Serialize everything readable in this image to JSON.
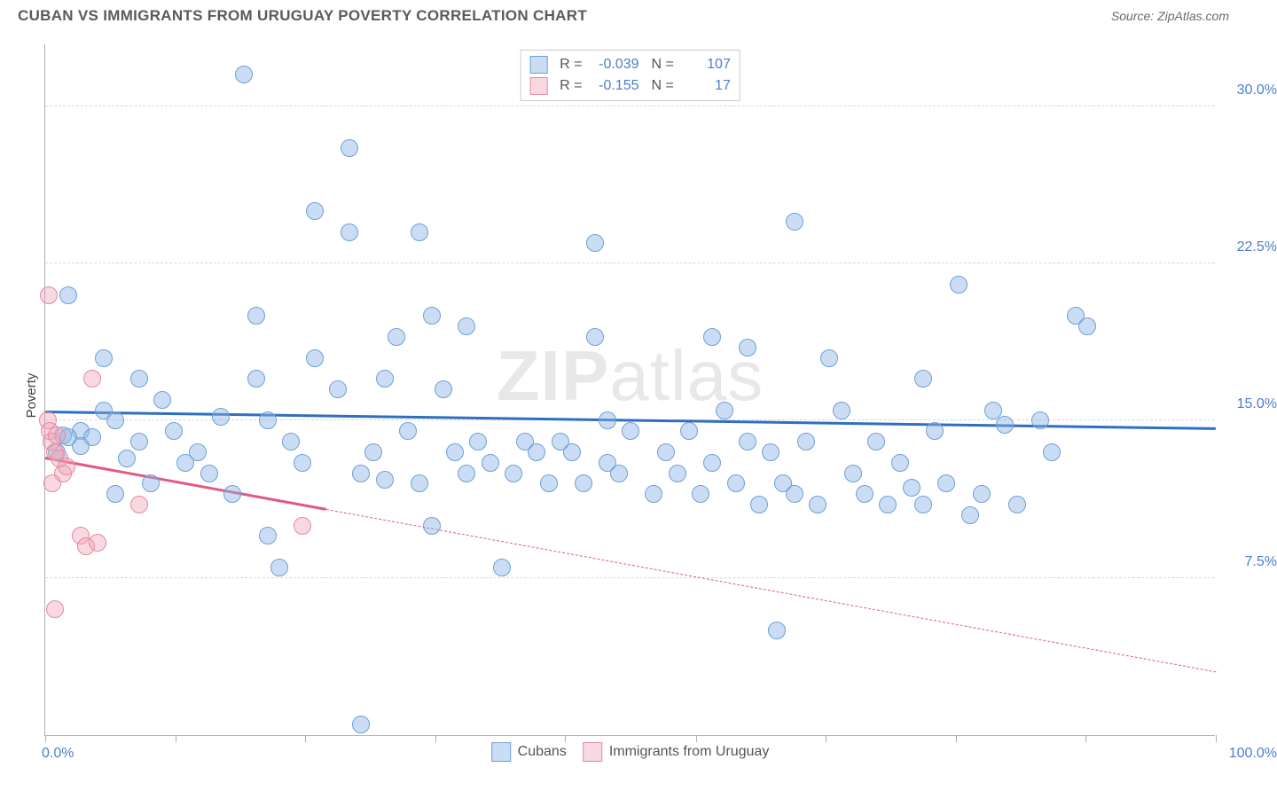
{
  "header": {
    "title": "CUBAN VS IMMIGRANTS FROM URUGUAY POVERTY CORRELATION CHART",
    "source": "Source: ZipAtlas.com"
  },
  "watermark": {
    "bold": "ZIP",
    "light": "atlas"
  },
  "chart": {
    "type": "scatter",
    "ylabel": "Poverty",
    "xlim": [
      0,
      100
    ],
    "ylim": [
      0,
      33
    ],
    "xticks": [
      0,
      11.1,
      22.2,
      33.3,
      44.4,
      55.6,
      66.7,
      77.8,
      88.9,
      100
    ],
    "xtick_labels": {
      "first": "0.0%",
      "last": "100.0%"
    },
    "yticks": [
      7.5,
      15.0,
      22.5,
      30.0
    ],
    "ytick_labels": [
      "7.5%",
      "15.0%",
      "22.5%",
      "30.0%"
    ],
    "grid_color": "#d8d8d8",
    "axis_color": "#b0b0b0",
    "background_color": "#ffffff",
    "point_radius": 10,
    "point_stroke_width": 1,
    "series": [
      {
        "name": "Cubans",
        "fill_color": "rgba(140,180,230,0.45)",
        "stroke_color": "#6f9fd8",
        "trend_color": "#2f6fc0",
        "trend": {
          "x0": 0,
          "y0": 15.4,
          "x1": 100,
          "y1": 14.6,
          "dash_after_x": 100
        },
        "R": "-0.039",
        "N": "107",
        "points": [
          [
            17,
            31.5
          ],
          [
            26,
            28
          ],
          [
            23,
            25
          ],
          [
            32,
            24
          ],
          [
            26,
            24
          ],
          [
            47,
            23.5
          ],
          [
            64,
            24.5
          ],
          [
            78,
            21.5
          ],
          [
            88,
            20
          ],
          [
            89,
            19.5
          ],
          [
            75,
            17
          ],
          [
            2,
            21
          ],
          [
            18,
            20
          ],
          [
            33,
            20
          ],
          [
            30,
            19
          ],
          [
            36,
            19.5
          ],
          [
            47,
            19
          ],
          [
            57,
            19
          ],
          [
            60,
            18.5
          ],
          [
            10,
            16
          ],
          [
            5,
            15.5
          ],
          [
            6,
            15
          ],
          [
            8,
            14
          ],
          [
            3,
            14.5
          ],
          [
            3,
            13.8
          ],
          [
            1,
            13.5
          ],
          [
            1.5,
            14.3
          ],
          [
            2,
            14.2
          ],
          [
            4,
            14.2
          ],
          [
            11,
            14.5
          ],
          [
            13,
            13.5
          ],
          [
            15,
            15.2
          ],
          [
            18,
            17
          ],
          [
            19,
            15
          ],
          [
            21,
            14
          ],
          [
            22,
            13
          ],
          [
            23,
            18
          ],
          [
            25,
            16.5
          ],
          [
            27,
            12.5
          ],
          [
            28,
            13.5
          ],
          [
            29,
            17
          ],
          [
            29,
            12.2
          ],
          [
            31,
            14.5
          ],
          [
            32,
            12
          ],
          [
            33,
            10
          ],
          [
            34,
            16.5
          ],
          [
            35,
            13.5
          ],
          [
            36,
            12.5
          ],
          [
            37,
            14
          ],
          [
            38,
            13
          ],
          [
            39,
            8
          ],
          [
            40,
            12.5
          ],
          [
            41,
            14
          ],
          [
            42,
            13.5
          ],
          [
            43,
            12
          ],
          [
            44,
            14
          ],
          [
            45,
            13.5
          ],
          [
            46,
            12
          ],
          [
            48,
            15
          ],
          [
            48,
            13
          ],
          [
            49,
            12.5
          ],
          [
            50,
            14.5
          ],
          [
            52,
            11.5
          ],
          [
            53,
            13.5
          ],
          [
            54,
            12.5
          ],
          [
            55,
            14.5
          ],
          [
            56,
            11.5
          ],
          [
            57,
            13
          ],
          [
            58,
            15.5
          ],
          [
            59,
            12
          ],
          [
            60,
            14
          ],
          [
            61,
            11
          ],
          [
            62,
            13.5
          ],
          [
            62.5,
            5
          ],
          [
            63,
            12
          ],
          [
            64,
            11.5
          ],
          [
            65,
            14
          ],
          [
            66,
            11
          ],
          [
            67,
            18
          ],
          [
            68,
            15.5
          ],
          [
            69,
            12.5
          ],
          [
            70,
            11.5
          ],
          [
            71,
            14
          ],
          [
            72,
            11
          ],
          [
            73,
            13
          ],
          [
            74,
            11.8
          ],
          [
            75,
            11
          ],
          [
            76,
            14.5
          ],
          [
            77,
            12
          ],
          [
            79,
            10.5
          ],
          [
            80,
            11.5
          ],
          [
            81,
            15.5
          ],
          [
            82,
            14.8
          ],
          [
            83,
            11
          ],
          [
            85,
            15
          ],
          [
            86,
            13.5
          ],
          [
            27,
            0.5
          ],
          [
            5,
            18
          ],
          [
            8,
            17
          ],
          [
            12,
            13
          ],
          [
            14,
            12.5
          ],
          [
            16,
            11.5
          ],
          [
            20,
            8
          ],
          [
            6,
            11.5
          ],
          [
            9,
            12
          ],
          [
            19,
            9.5
          ],
          [
            7,
            13.2
          ]
        ]
      },
      {
        "name": "Immigrants from Uruguay",
        "fill_color": "rgba(240,160,180,0.40)",
        "stroke_color": "#e28aa2",
        "trend_color": "#e05a82",
        "trend": {
          "x0": 0,
          "y0": 13.2,
          "x1": 100,
          "y1": 3.0,
          "dash_after_x": 24
        },
        "R": "-0.155",
        "N": "17",
        "points": [
          [
            0.3,
            21
          ],
          [
            0.2,
            15
          ],
          [
            0.4,
            14.5
          ],
          [
            0.5,
            14
          ],
          [
            0.8,
            13.5
          ],
          [
            1,
            14.3
          ],
          [
            1.2,
            13.2
          ],
          [
            1.5,
            12.5
          ],
          [
            1.8,
            12.8
          ],
          [
            0.6,
            12
          ],
          [
            4,
            17
          ],
          [
            8,
            11
          ],
          [
            3,
            9.5
          ],
          [
            3.5,
            9
          ],
          [
            4.5,
            9.2
          ],
          [
            0.8,
            6
          ],
          [
            22,
            10
          ]
        ]
      }
    ]
  },
  "legend_top": {
    "r_label": "R =",
    "n_label": "N ="
  },
  "legend_bottom": {
    "series1": "Cubans",
    "series2": "Immigrants from Uruguay"
  }
}
